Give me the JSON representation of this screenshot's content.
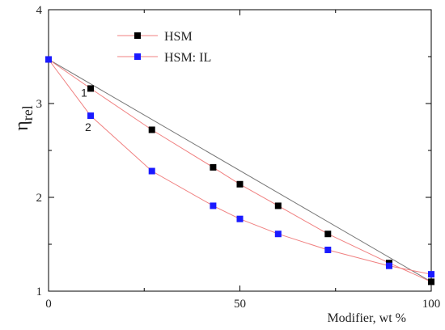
{
  "chart_data": {
    "type": "line",
    "xlabel": "Modifier, wt %",
    "ylabel": {
      "main": "η",
      "sub": "rel"
    },
    "xlim": [
      0,
      100
    ],
    "ylim": [
      1,
      4
    ],
    "xticks": [
      0,
      50,
      100
    ],
    "xticks_minor": [
      25,
      75
    ],
    "yticks": [
      1,
      2,
      3,
      4
    ],
    "yticks_minor": [
      1.5,
      2.5,
      3.5
    ],
    "grid": false,
    "legend_position": "top-left",
    "series": [
      {
        "name": "HSM",
        "marker_color": "#000000",
        "line_color": "#f08080",
        "curve_label": "1",
        "x": [
          0,
          11,
          27,
          43,
          50,
          60,
          73,
          89,
          100
        ],
        "y": [
          3.47,
          3.16,
          2.72,
          2.32,
          2.14,
          1.91,
          1.61,
          1.3,
          1.1
        ]
      },
      {
        "name": "HSM: IL",
        "marker_color": "#1a1aff",
        "line_color": "#f08080",
        "curve_label": "2",
        "x": [
          0,
          11,
          27,
          43,
          50,
          60,
          73,
          89,
          100
        ],
        "y": [
          3.47,
          2.87,
          2.28,
          1.91,
          1.77,
          1.61,
          1.44,
          1.27,
          1.18
        ]
      }
    ],
    "reference_line": {
      "x": [
        0,
        100
      ],
      "y": [
        3.47,
        1.1
      ],
      "color": "#777777"
    }
  }
}
